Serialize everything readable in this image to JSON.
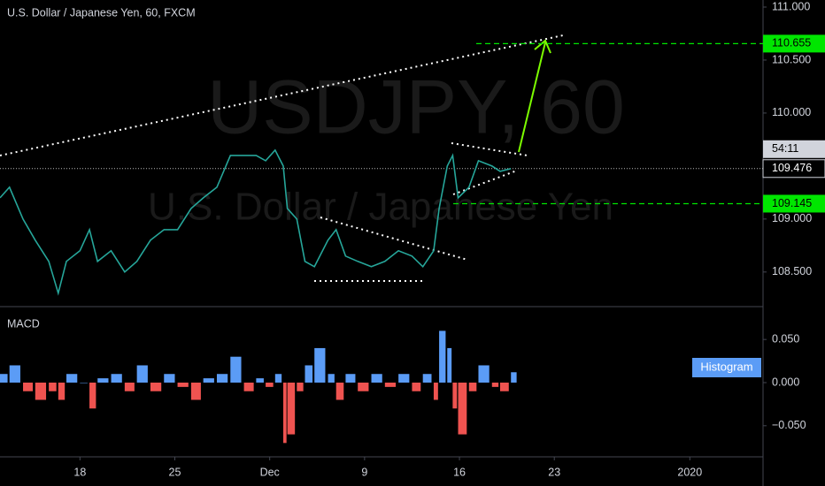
{
  "chart_data": [
    {
      "type": "line",
      "title": "U.S. Dollar / Japanese Yen, 60, FXCM",
      "watermark": "USDJPY, 60",
      "watermark_subtitle": "U.S. Dollar / Japanese Yen",
      "color": "#26a69a",
      "x": [
        12.1,
        12.8,
        13.8,
        14.7,
        15.7,
        16.4,
        17.0,
        18.0,
        18.7,
        19.3,
        20.3,
        21.3,
        22.2,
        23.2,
        24.2,
        25.2,
        26.2,
        27.1,
        28.1,
        29.1,
        30.1,
        31.0,
        31.7,
        32.4,
        33.0,
        33.3,
        34.0,
        34.6,
        35.3,
        36.3,
        36.9,
        37.6,
        38.5,
        39.5,
        40.5,
        41.5,
        42.5,
        43.3,
        44.1,
        44.5,
        45.1,
        45.5,
        45.9,
        46.7,
        47.4,
        48.4,
        49.0,
        49.8
      ],
      "values": [
        109.2,
        109.3,
        109.0,
        108.8,
        108.6,
        108.3,
        108.6,
        108.7,
        108.9,
        108.6,
        108.7,
        108.5,
        108.6,
        108.8,
        108.9,
        108.9,
        109.1,
        109.2,
        109.3,
        109.6,
        109.6,
        109.6,
        109.55,
        109.65,
        109.5,
        109.1,
        109.0,
        108.6,
        108.55,
        108.8,
        108.9,
        108.65,
        108.6,
        108.55,
        108.6,
        108.7,
        108.65,
        108.55,
        108.7,
        109.1,
        109.5,
        109.6,
        109.2,
        109.3,
        109.55,
        109.5,
        109.45,
        109.476
      ],
      "xlim": [
        12.1,
        68.4
      ],
      "xticks": [
        {
          "value": 18,
          "label": "18"
        },
        {
          "value": 25,
          "label": "25"
        },
        {
          "value": 32,
          "label": "Dec"
        },
        {
          "value": 39,
          "label": "9"
        },
        {
          "value": 46,
          "label": "16"
        },
        {
          "value": 53,
          "label": "23"
        },
        {
          "value": 63,
          "label": "2020"
        }
      ],
      "ylim": [
        108.19,
        111.0
      ],
      "yticks": [
        {
          "value": 108.5,
          "label": "108.500"
        },
        {
          "value": 109.0,
          "label": "109.000"
        },
        {
          "value": 110.0,
          "label": "110.000"
        },
        {
          "value": 110.5,
          "label": "110.500"
        },
        {
          "value": 111.0,
          "label": "111.000"
        }
      ],
      "levels": [
        110.655,
        109.145
      ],
      "level_color": "#00e600",
      "current_price": 109.476,
      "countdown": "54:11"
    },
    {
      "type": "bar",
      "title": "MACD",
      "x": [
        12.1,
        12.8,
        13.8,
        14.7,
        15.7,
        16.4,
        17.0,
        18.0,
        18.7,
        19.3,
        20.3,
        21.3,
        22.2,
        23.2,
        24.2,
        25.2,
        26.2,
        27.1,
        28.1,
        29.1,
        30.1,
        31.0,
        31.7,
        32.4,
        33.0,
        33.3,
        34.0,
        34.6,
        35.3,
        36.3,
        36.9,
        37.6,
        38.5,
        39.5,
        40.5,
        41.5,
        42.5,
        43.3,
        44.1,
        44.5,
        45.1,
        45.5,
        45.9,
        46.7,
        47.4,
        48.4,
        49.0,
        49.8
      ],
      "series": [
        {
          "name": "Histogram",
          "color": "#5b9cf6",
          "negative_color": "#ef5350",
          "values": [
            0.01,
            0.02,
            -0.01,
            -0.02,
            -0.01,
            -0.02,
            0.01,
            0.0,
            -0.03,
            0.005,
            0.01,
            -0.01,
            0.02,
            -0.01,
            0.01,
            -0.005,
            -0.02,
            0.005,
            0.01,
            0.03,
            -0.01,
            0.005,
            -0.005,
            0.01,
            -0.07,
            -0.06,
            -0.01,
            0.02,
            0.04,
            0.01,
            -0.02,
            0.01,
            -0.01,
            0.01,
            -0.005,
            0.01,
            -0.01,
            0.01,
            -0.02,
            0.06,
            0.04,
            -0.03,
            -0.06,
            -0.01,
            0.02,
            -0.005,
            -0.01,
            0.012
          ]
        }
      ],
      "ylim": [
        -0.084,
        0.085
      ],
      "yticks": [
        {
          "value": -0.05,
          "label": "−0.050"
        },
        {
          "value": 0,
          "label": "0.000"
        },
        {
          "value": 0.05,
          "label": "0.050"
        }
      ]
    }
  ]
}
